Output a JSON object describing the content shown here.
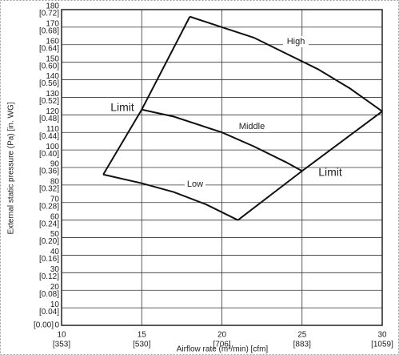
{
  "chart_data": {
    "type": "line",
    "xlabel": "Airflow rate (m³/min) [cfm]",
    "ylabel": "External static pressure (Pa) [in. WG]",
    "xlim": [
      10,
      30
    ],
    "xticks": [
      10,
      15,
      20,
      25,
      30
    ],
    "xtick_cfm_labels": [
      "[353]",
      "[530]",
      "[706]",
      "[883]",
      "[1059]"
    ],
    "ylim": [
      0,
      180
    ],
    "yticks": [
      0,
      10,
      20,
      30,
      40,
      50,
      60,
      70,
      80,
      90,
      100,
      110,
      120,
      130,
      140,
      150,
      160,
      170,
      180
    ],
    "ytick_inch_labels": [
      "[0.00]",
      "[0.04]",
      "[0.08]",
      "[0.12]",
      "[0.16]",
      "[0.20]",
      "[0.24]",
      "[0.28]",
      "[0.32]",
      "[0.36]",
      "[0.40]",
      "[0.44]",
      "[0.48]",
      "[0.52]",
      "[0.56]",
      "[0.60]",
      "[0.64]",
      "[0.68]",
      "[0.72]"
    ],
    "grid": true,
    "color": "#111111",
    "series": [
      {
        "name": "High",
        "x": [
          18,
          20,
          22,
          24,
          26,
          28,
          30
        ],
        "values": [
          176,
          170,
          164,
          155,
          146,
          135,
          122
        ]
      },
      {
        "name": "Middle",
        "x": [
          15,
          17,
          20,
          22,
          24,
          25
        ],
        "values": [
          123,
          119,
          110,
          102,
          93,
          88
        ]
      },
      {
        "name": "Low",
        "x": [
          12.6,
          15,
          17,
          19,
          21
        ],
        "values": [
          86,
          81,
          76,
          69,
          60
        ]
      },
      {
        "name": "Limit",
        "x": [
          18,
          15,
          12.6
        ],
        "values": [
          176,
          123,
          86
        ]
      },
      {
        "name": "Limit",
        "x": [
          21,
          25,
          30
        ],
        "values": [
          60,
          88,
          122
        ]
      }
    ]
  }
}
